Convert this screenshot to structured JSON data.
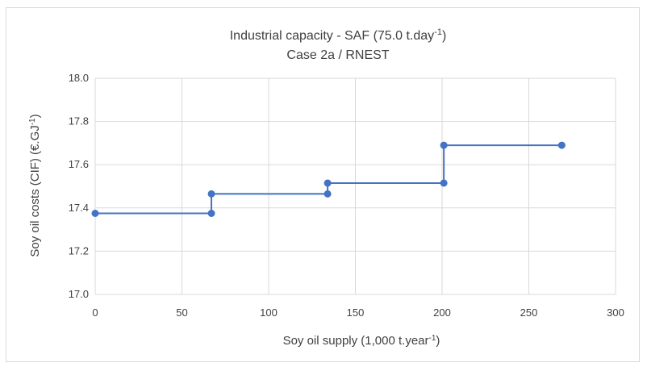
{
  "chart_data": {
    "type": "line",
    "title_line1_main": "Industrial capacity - SAF (75.0 t.day",
    "title_line1_sup": "-1",
    "title_line1_end": ")",
    "title_line2": "Case 2a / RNEST",
    "xlabel_main": "Soy oil supply (1,000 t.year",
    "xlabel_sup": "-1",
    "xlabel_end": ")",
    "ylabel_main": "Soy oil costs (CIF) (€.GJ",
    "ylabel_sup": "-1",
    "ylabel_end": ")",
    "xlim": [
      0,
      300
    ],
    "ylim": [
      17.0,
      18.0
    ],
    "x_ticks": [
      "0",
      "50",
      "100",
      "150",
      "200",
      "250",
      "300"
    ],
    "y_ticks": [
      "17.0",
      "17.2",
      "17.4",
      "17.6",
      "17.8",
      "18.0"
    ],
    "grid": true,
    "legend": "none",
    "series": [
      {
        "color": "#4472c4",
        "x": [
          0,
          67,
          67,
          134,
          134,
          201,
          201,
          269
        ],
        "y": [
          17.375,
          17.375,
          17.465,
          17.465,
          17.515,
          17.515,
          17.69,
          17.69
        ]
      }
    ]
  }
}
